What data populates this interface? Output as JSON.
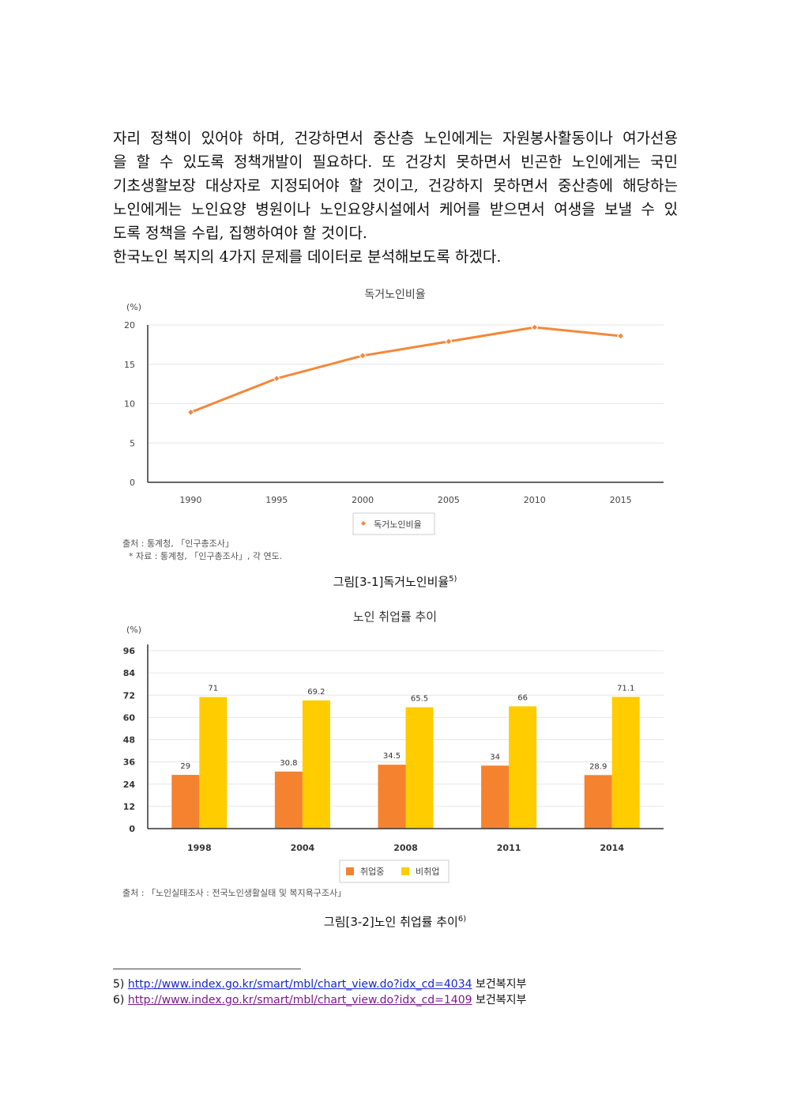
{
  "paragraph_lines": [
    "자리 정책이 있어야 하며, 건강하면서 중산층 노인에게는 자원봉사활동이나 여가선용",
    "을 할 수 있도록 정책개발이 필요하다. 또 건강치 못하면서 빈곤한 노인에게는 국민",
    "기초생활보장 대상자로 지정되어야 할 것이고, 건강하지 못하면서 중산층에 해당하는",
    "노인에게는 노인요양 병원이나 노인요양시설에서 케어를 받으면서 여생을 보낼 수 있",
    "도록 정책을 수립, 집행하여야 할 것이다."
  ],
  "intro_line": " 한국노인 복지의 4가지 문제를 데이터로 분석해보도록 하겠다.",
  "chart1_source": [
    "출처 : 통계청, 「인구총조사」",
    "* 자료 : 통계청, 「인구총조사」, 각 연도."
  ],
  "chart1_caption": "그림[3-1]독거노인비율",
  "chart1_caption_note": "5)",
  "chart2_source": "출처 : 「노인실태조사 : 전국노인생활실태 및 복지욕구조사」",
  "chart2_caption": "그림[3-2]노인 취업률 추이",
  "chart2_caption_note": "6)",
  "footnotes": [
    {
      "num": "5)",
      "url": "http://www.index.go.kr/smart/mbl/chart_view.do?idx_cd=4034",
      "org": "보건복지부"
    },
    {
      "num": "6)",
      "url": "http://www.index.go.kr/smart/mbl/chart_view.do?idx_cd=1409",
      "org": "보건복지부"
    }
  ],
  "colors": {
    "line": "#f5873a",
    "employed": "#f5822f",
    "unemployed": "#ffcc00"
  },
  "chart_data": [
    {
      "type": "line",
      "title": "독거노인비율",
      "ylabel": "(%)",
      "categories": [
        "1990",
        "1995",
        "2000",
        "2005",
        "2010",
        "2015"
      ],
      "series": [
        {
          "name": "독거노인비율",
          "values": [
            8.9,
            13.2,
            16.1,
            17.9,
            19.7,
            18.6
          ]
        }
      ],
      "ylim": [
        0,
        20
      ],
      "yticks": [
        "0",
        "5",
        "10",
        "15",
        "20"
      ],
      "grid": true,
      "legend": "bottom"
    },
    {
      "type": "bar",
      "title": "노인 취업률 추이",
      "ylabel": "(%)",
      "categories": [
        "1998",
        "2004",
        "2008",
        "2011",
        "2014"
      ],
      "series": [
        {
          "name": "취업중",
          "values": [
            29,
            30.8,
            34.5,
            34,
            28.9
          ],
          "labels": [
            "29",
            "30.8",
            "34.5",
            "34",
            "28.9"
          ]
        },
        {
          "name": "비취업",
          "values": [
            71,
            69.2,
            65.5,
            66,
            71.1
          ],
          "labels": [
            "71",
            "69.2",
            "65.5",
            "66",
            "71.1"
          ]
        }
      ],
      "ylim": [
        0,
        96
      ],
      "yticks": [
        "0",
        "12",
        "24",
        "36",
        "48",
        "60",
        "72",
        "84",
        "96"
      ],
      "grid": true,
      "legend": "bottom"
    }
  ]
}
